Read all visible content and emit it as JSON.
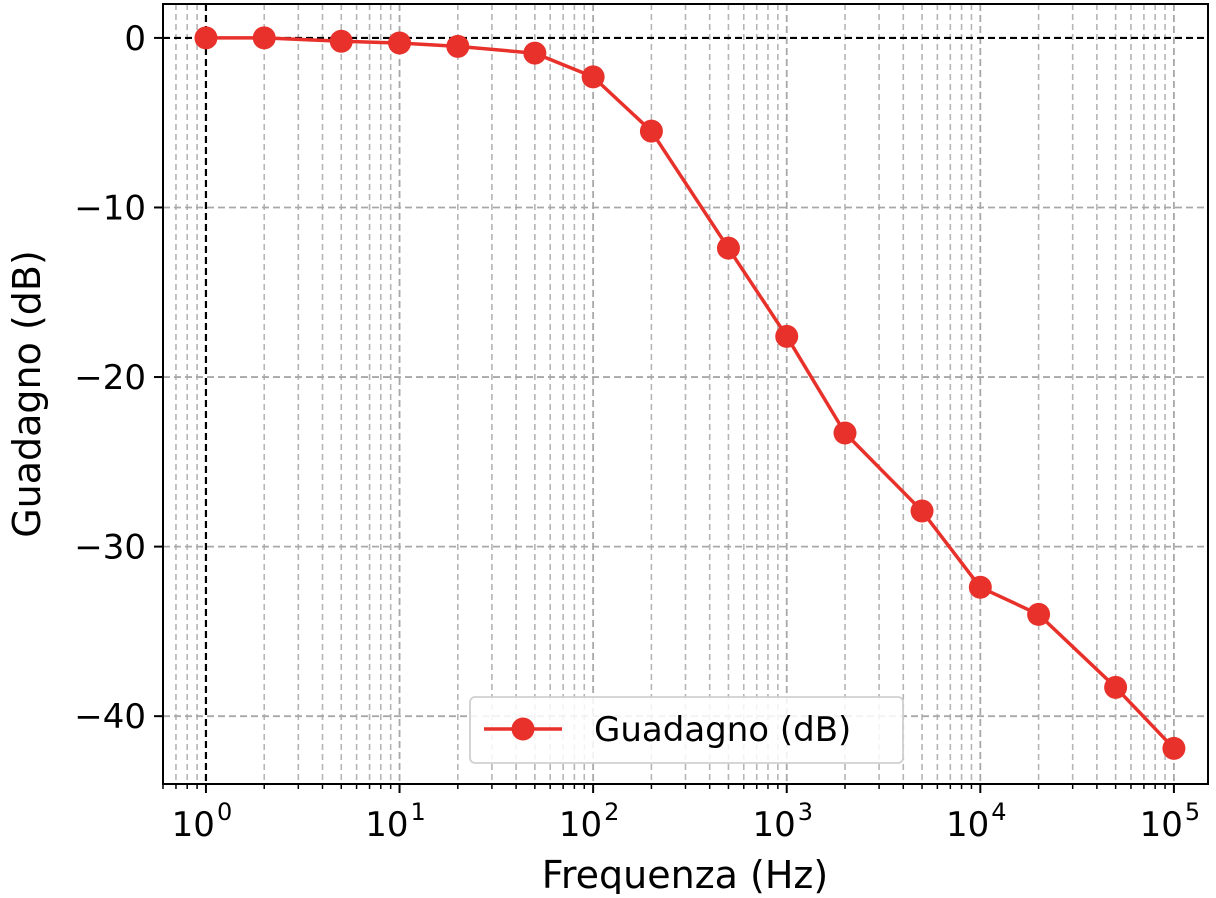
{
  "chart_data": {
    "type": "line",
    "xlabel": "Frequenza (Hz)",
    "ylabel": "Guadagno (dB)",
    "xscale": "log",
    "xlim": [
      0.6,
      150000
    ],
    "ylim": [
      -44,
      2
    ],
    "grid": true,
    "legend_position": "bottom-center",
    "x_ticks": [
      {
        "value": 1,
        "base": "10",
        "exp": "0"
      },
      {
        "value": 10,
        "base": "10",
        "exp": "1"
      },
      {
        "value": 100,
        "base": "10",
        "exp": "2"
      },
      {
        "value": 1000,
        "base": "10",
        "exp": "3"
      },
      {
        "value": 10000,
        "base": "10",
        "exp": "4"
      },
      {
        "value": 100000,
        "base": "10",
        "exp": "5"
      }
    ],
    "y_ticks": [
      {
        "value": 0,
        "label": "0"
      },
      {
        "value": -10,
        "label": "−10"
      },
      {
        "value": -20,
        "label": "−20"
      },
      {
        "value": -30,
        "label": "−30"
      },
      {
        "value": -40,
        "label": "−40"
      }
    ],
    "reference_lines": {
      "x": 1,
      "y": 0
    },
    "series": [
      {
        "name": "Guadagno (dB)",
        "color": "#e8312a",
        "x": [
          1,
          2,
          5,
          10,
          20,
          50,
          100,
          200,
          500,
          1000,
          2000,
          5000,
          10000,
          20000,
          50000,
          100000
        ],
        "y": [
          0,
          0,
          -0.2,
          -0.3,
          -0.5,
          -0.9,
          -2.3,
          -5.5,
          -12.4,
          -17.6,
          -23.3,
          -27.9,
          -32.4,
          -34.0,
          -38.3,
          -41.9
        ]
      }
    ]
  }
}
